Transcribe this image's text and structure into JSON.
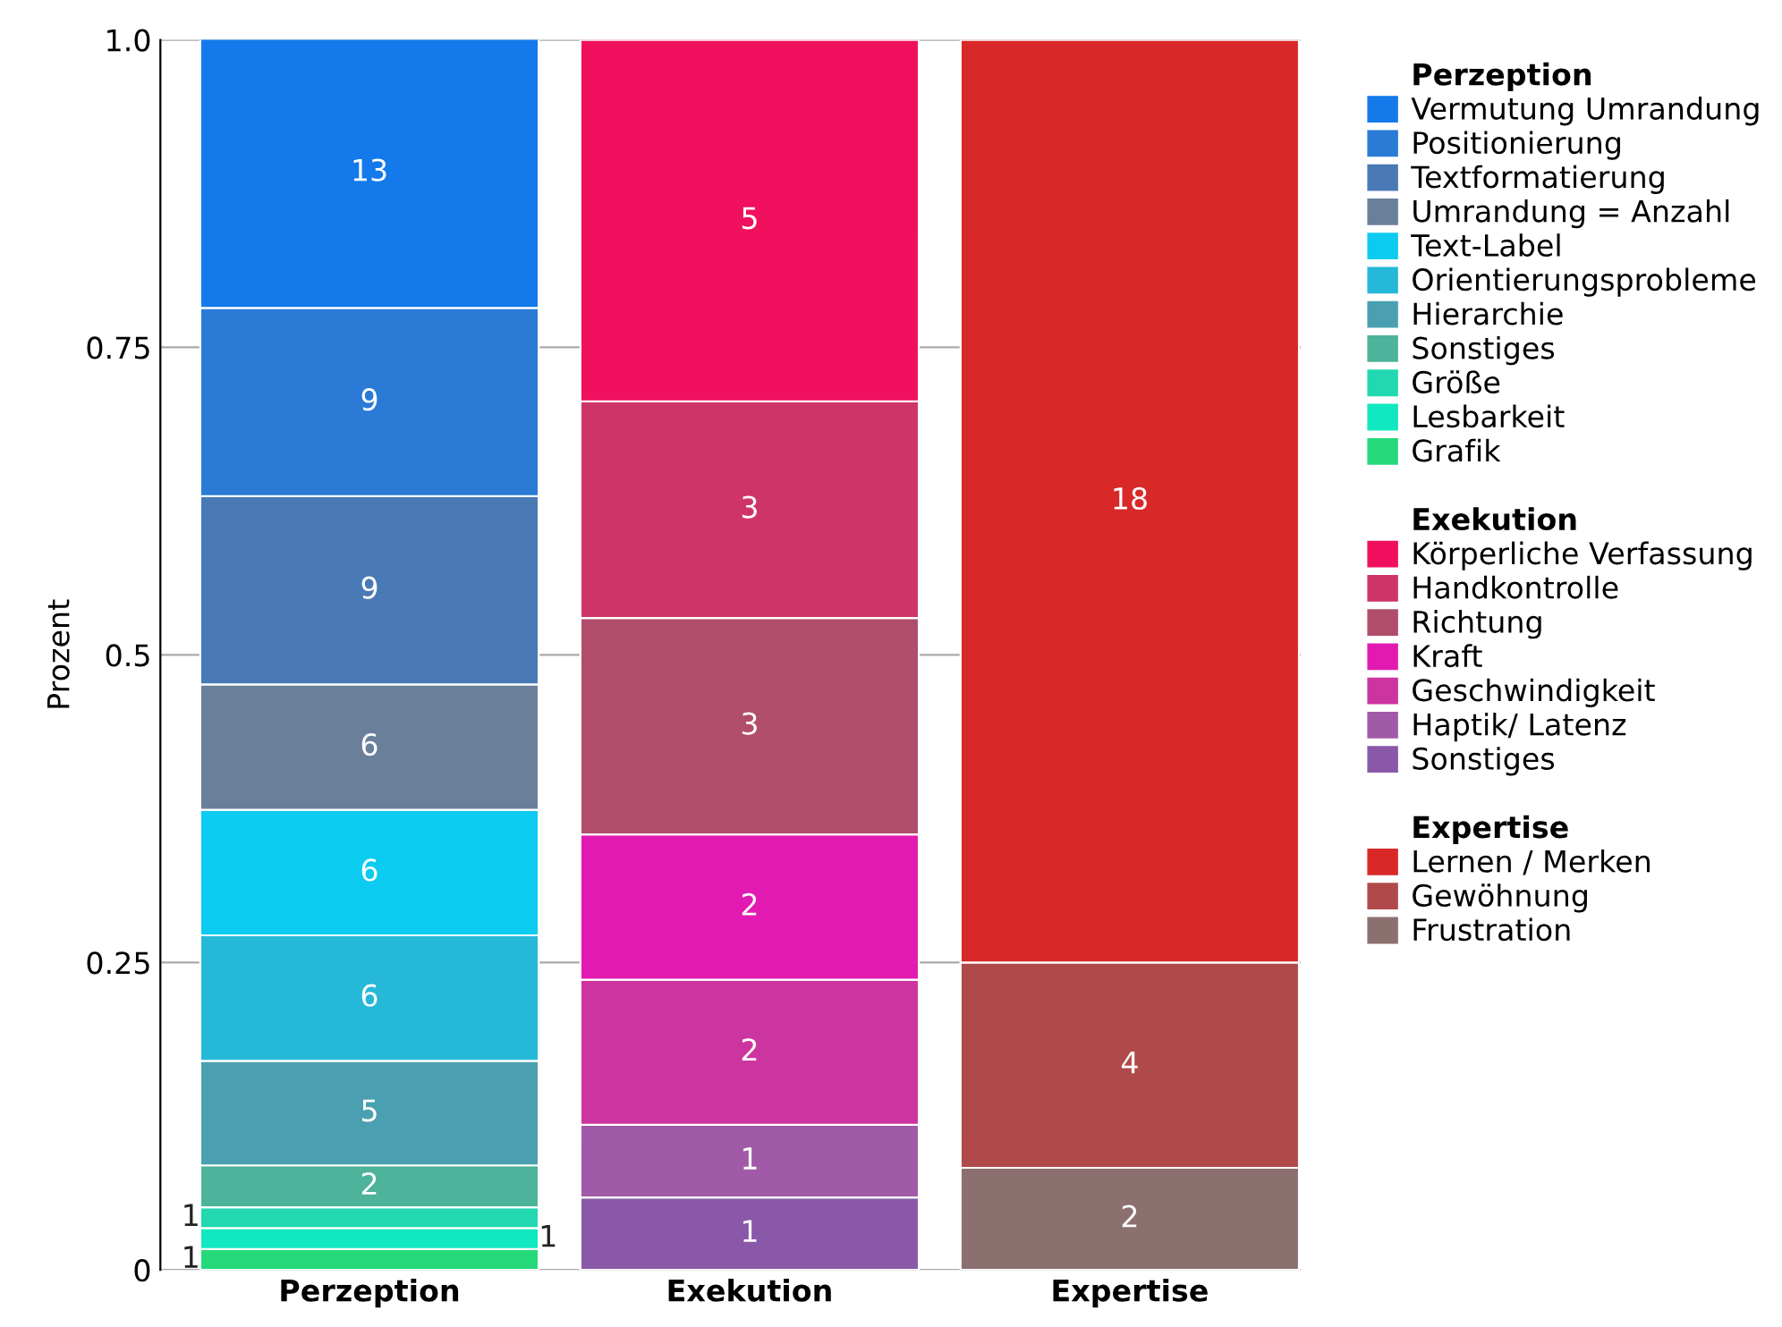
{
  "chart_data": {
    "type": "bar",
    "stacked": true,
    "ylabel": "Prozent",
    "categories": [
      "Perzeption",
      "Exekution",
      "Expertise"
    ],
    "ylim": [
      0,
      1
    ],
    "yticks": [
      0,
      {
        "value": 0.25,
        "label": "0.25"
      },
      {
        "value": 0.5,
        "label": "0.5"
      },
      0.75,
      {
        "value": 1,
        "label": "1.0"
      }
    ],
    "grid": "y",
    "legend": "right",
    "annotations": [
      "1",
      "1",
      "1",
      "2",
      "5",
      "6",
      "6",
      "6",
      "9",
      "9",
      "13",
      "1",
      "1",
      "2",
      "2",
      "3",
      "3",
      "5",
      "2",
      "4",
      "18"
    ],
    "series": [
      {
        "name": "Grafik",
        "color": "#25d97a",
        "values": [
          0.017,
          null,
          null
        ]
      },
      {
        "name": "Lesbarkeit",
        "color": "#10e8c0",
        "values": [
          0.017,
          null,
          null
        ]
      },
      {
        "name": "Größe",
        "color": "#22d8b0",
        "values": [
          0.017,
          null,
          null
        ]
      },
      {
        "name": "Sonstiges",
        "color": "#4db39a",
        "values": [
          0.034,
          null,
          null
        ]
      },
      {
        "name": "Hierarchie",
        "color": "#4aa0b0",
        "values": [
          0.085,
          null,
          null
        ]
      },
      {
        "name": "Orientierungsprobleme",
        "color": "#26b8d8",
        "values": [
          0.102,
          null,
          null
        ]
      },
      {
        "name": "Text-Label",
        "color": "#0ccbf0",
        "values": [
          0.102,
          null,
          null
        ]
      },
      {
        "name": "Umrandung = Anzahl",
        "color": "#6a7f9a",
        "values": [
          0.102,
          null,
          null
        ]
      },
      {
        "name": "Textformatierung",
        "color": "#4a7ab5",
        "values": [
          0.153,
          null,
          null
        ]
      },
      {
        "name": "Positionierung",
        "color": "#2a7ad6",
        "values": [
          0.153,
          null,
          null
        ]
      },
      {
        "name": "Vermutung Umrandung",
        "color": "#1479ea",
        "values": [
          0.22,
          null,
          null
        ]
      },
      {
        "name": "Sonstiges",
        "color": "#8a58a8",
        "values": [
          null,
          0.059,
          null
        ]
      },
      {
        "name": "Haptik/ Latenz",
        "color": "#a05aa8",
        "values": [
          null,
          0.059,
          null
        ]
      },
      {
        "name": "Geschwindigkeit",
        "color": "#cc35a0",
        "values": [
          null,
          0.118,
          null
        ]
      },
      {
        "name": "Kraft",
        "color": "#e21ab2",
        "values": [
          null,
          0.118,
          null
        ]
      },
      {
        "name": "Richtung",
        "color": "#b04d6a",
        "values": [
          null,
          0.176,
          null
        ]
      },
      {
        "name": "Handkontrolle",
        "color": "#cf3468",
        "values": [
          null,
          0.176,
          null
        ]
      },
      {
        "name": "Körperliche Verfassung",
        "color": "#f0105e",
        "values": [
          null,
          0.294,
          null
        ]
      },
      {
        "name": "Frustration",
        "color": "#8c7070",
        "values": [
          null,
          null,
          0.083
        ]
      },
      {
        "name": "Gewöhnung",
        "color": "#b04a4a",
        "values": [
          null,
          null,
          0.167
        ]
      },
      {
        "name": "Lernen / Merken",
        "color": "#d92828",
        "values": [
          null,
          null,
          0.75
        ]
      }
    ]
  }
}
